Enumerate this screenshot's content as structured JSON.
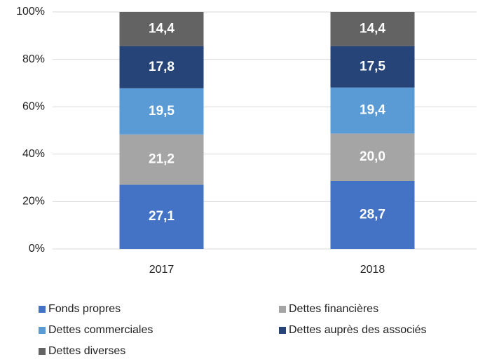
{
  "chart_data": {
    "type": "stacked_bar",
    "categories": [
      "2017",
      "2018"
    ],
    "series": [
      {
        "name": "Fonds propres",
        "color": "#4472c4",
        "values": [
          27.1,
          28.7
        ],
        "value_labels": [
          "27,1",
          "28,7"
        ]
      },
      {
        "name": "Dettes financières",
        "color": "#a5a5a5",
        "values": [
          21.2,
          20.0
        ],
        "value_labels": [
          "21,2",
          "20,0"
        ]
      },
      {
        "name": "Dettes commerciales",
        "color": "#5b9bd5",
        "values": [
          19.5,
          19.4
        ],
        "value_labels": [
          "19,5",
          "19,4"
        ]
      },
      {
        "name": "Dettes auprès des associés",
        "color": "#264478",
        "values": [
          17.8,
          17.5
        ],
        "value_labels": [
          "17,8",
          "17,5"
        ]
      },
      {
        "name": "Dettes diverses",
        "color": "#636363",
        "values": [
          14.4,
          14.4
        ],
        "value_labels": [
          "14,4",
          "14,4"
        ]
      }
    ],
    "ylim": [
      0,
      100
    ],
    "yticks": [
      {
        "value": 0,
        "label": "0%"
      },
      {
        "value": 20,
        "label": "20%"
      },
      {
        "value": 40,
        "label": "40%"
      },
      {
        "value": 60,
        "label": "60%"
      },
      {
        "value": 80,
        "label": "80%"
      },
      {
        "value": 100,
        "label": "100%"
      }
    ],
    "grid": true,
    "legend": "bottom"
  }
}
